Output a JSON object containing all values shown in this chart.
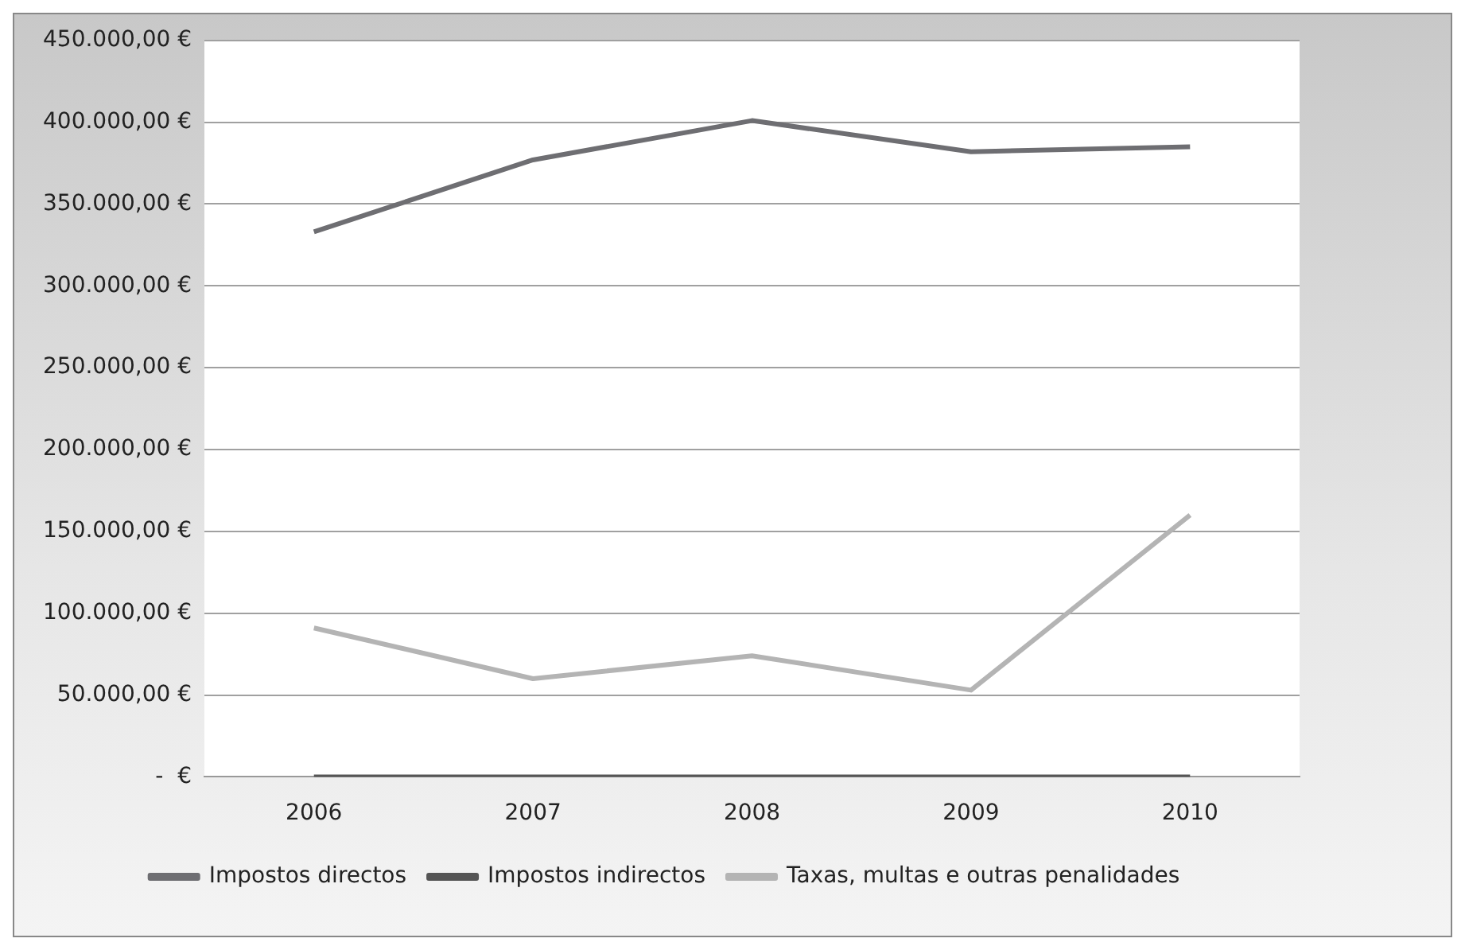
{
  "chart_data": {
    "type": "line",
    "categories": [
      "2006",
      "2007",
      "2008",
      "2009",
      "2010"
    ],
    "series": [
      {
        "name": "Impostos directos",
        "color": "#6e6e72",
        "values": [
          333000,
          377000,
          401000,
          382000,
          385000
        ]
      },
      {
        "name": "Impostos indirectos",
        "color": "#555555",
        "values": [
          0,
          0,
          0,
          0,
          0
        ]
      },
      {
        "name": "Taxas, multas e outras penalidades",
        "color": "#b4b4b4",
        "values": [
          91000,
          60000,
          74000,
          53000,
          160000
        ]
      }
    ],
    "ylim": [
      0,
      450000
    ],
    "yticks": [
      {
        "value": 0,
        "label": "-  €"
      },
      {
        "value": 50000,
        "label": "50.000,00 €"
      },
      {
        "value": 100000,
        "label": "100.000,00 €"
      },
      {
        "value": 150000,
        "label": "150.000,00 €"
      },
      {
        "value": 200000,
        "label": "200.000,00 €"
      },
      {
        "value": 250000,
        "label": "250.000,00 €"
      },
      {
        "value": 300000,
        "label": "300.000,00 €"
      },
      {
        "value": 350000,
        "label": "350.000,00 €"
      },
      {
        "value": 400000,
        "label": "400.000,00 €"
      },
      {
        "value": 450000,
        "label": "450.000,00 €"
      }
    ],
    "grid": "y",
    "legend": "bottom",
    "marker": "none",
    "line_style": "solid"
  }
}
